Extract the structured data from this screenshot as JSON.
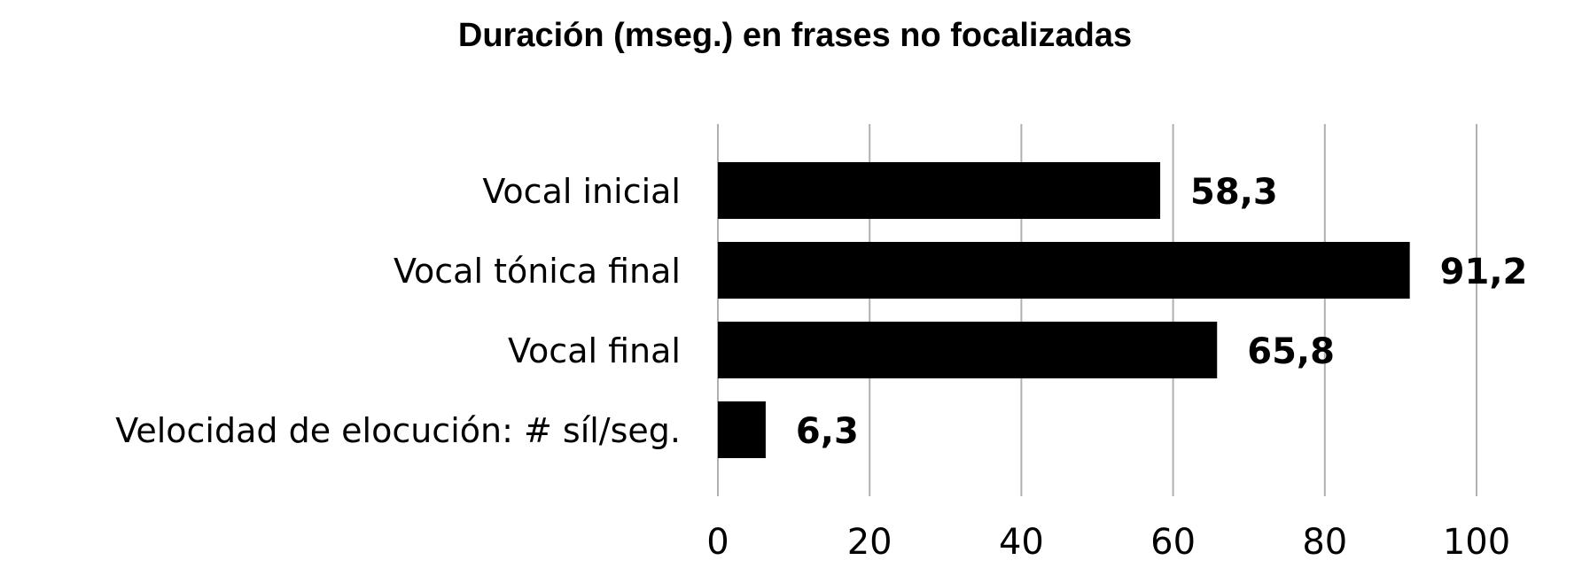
{
  "chart_data": {
    "type": "bar",
    "orientation": "horizontal",
    "title": "Duración (mseg.) en frases no focalizadas",
    "categories": [
      "Vocal inicial",
      "Vocal tónica final",
      "Vocal final",
      "Velocidad de elocución: # síl/seg."
    ],
    "values": [
      58.3,
      91.2,
      65.8,
      6.3
    ],
    "value_labels": [
      "58,3",
      "91,2",
      "65,8",
      "6,3"
    ],
    "xlim": [
      0,
      100
    ],
    "xticks": [
      "0",
      "20",
      "40",
      "60",
      "80",
      "100"
    ],
    "grid": true,
    "legend": "none",
    "bar_color": "#000000",
    "grid_color": "#b0b0b0"
  }
}
